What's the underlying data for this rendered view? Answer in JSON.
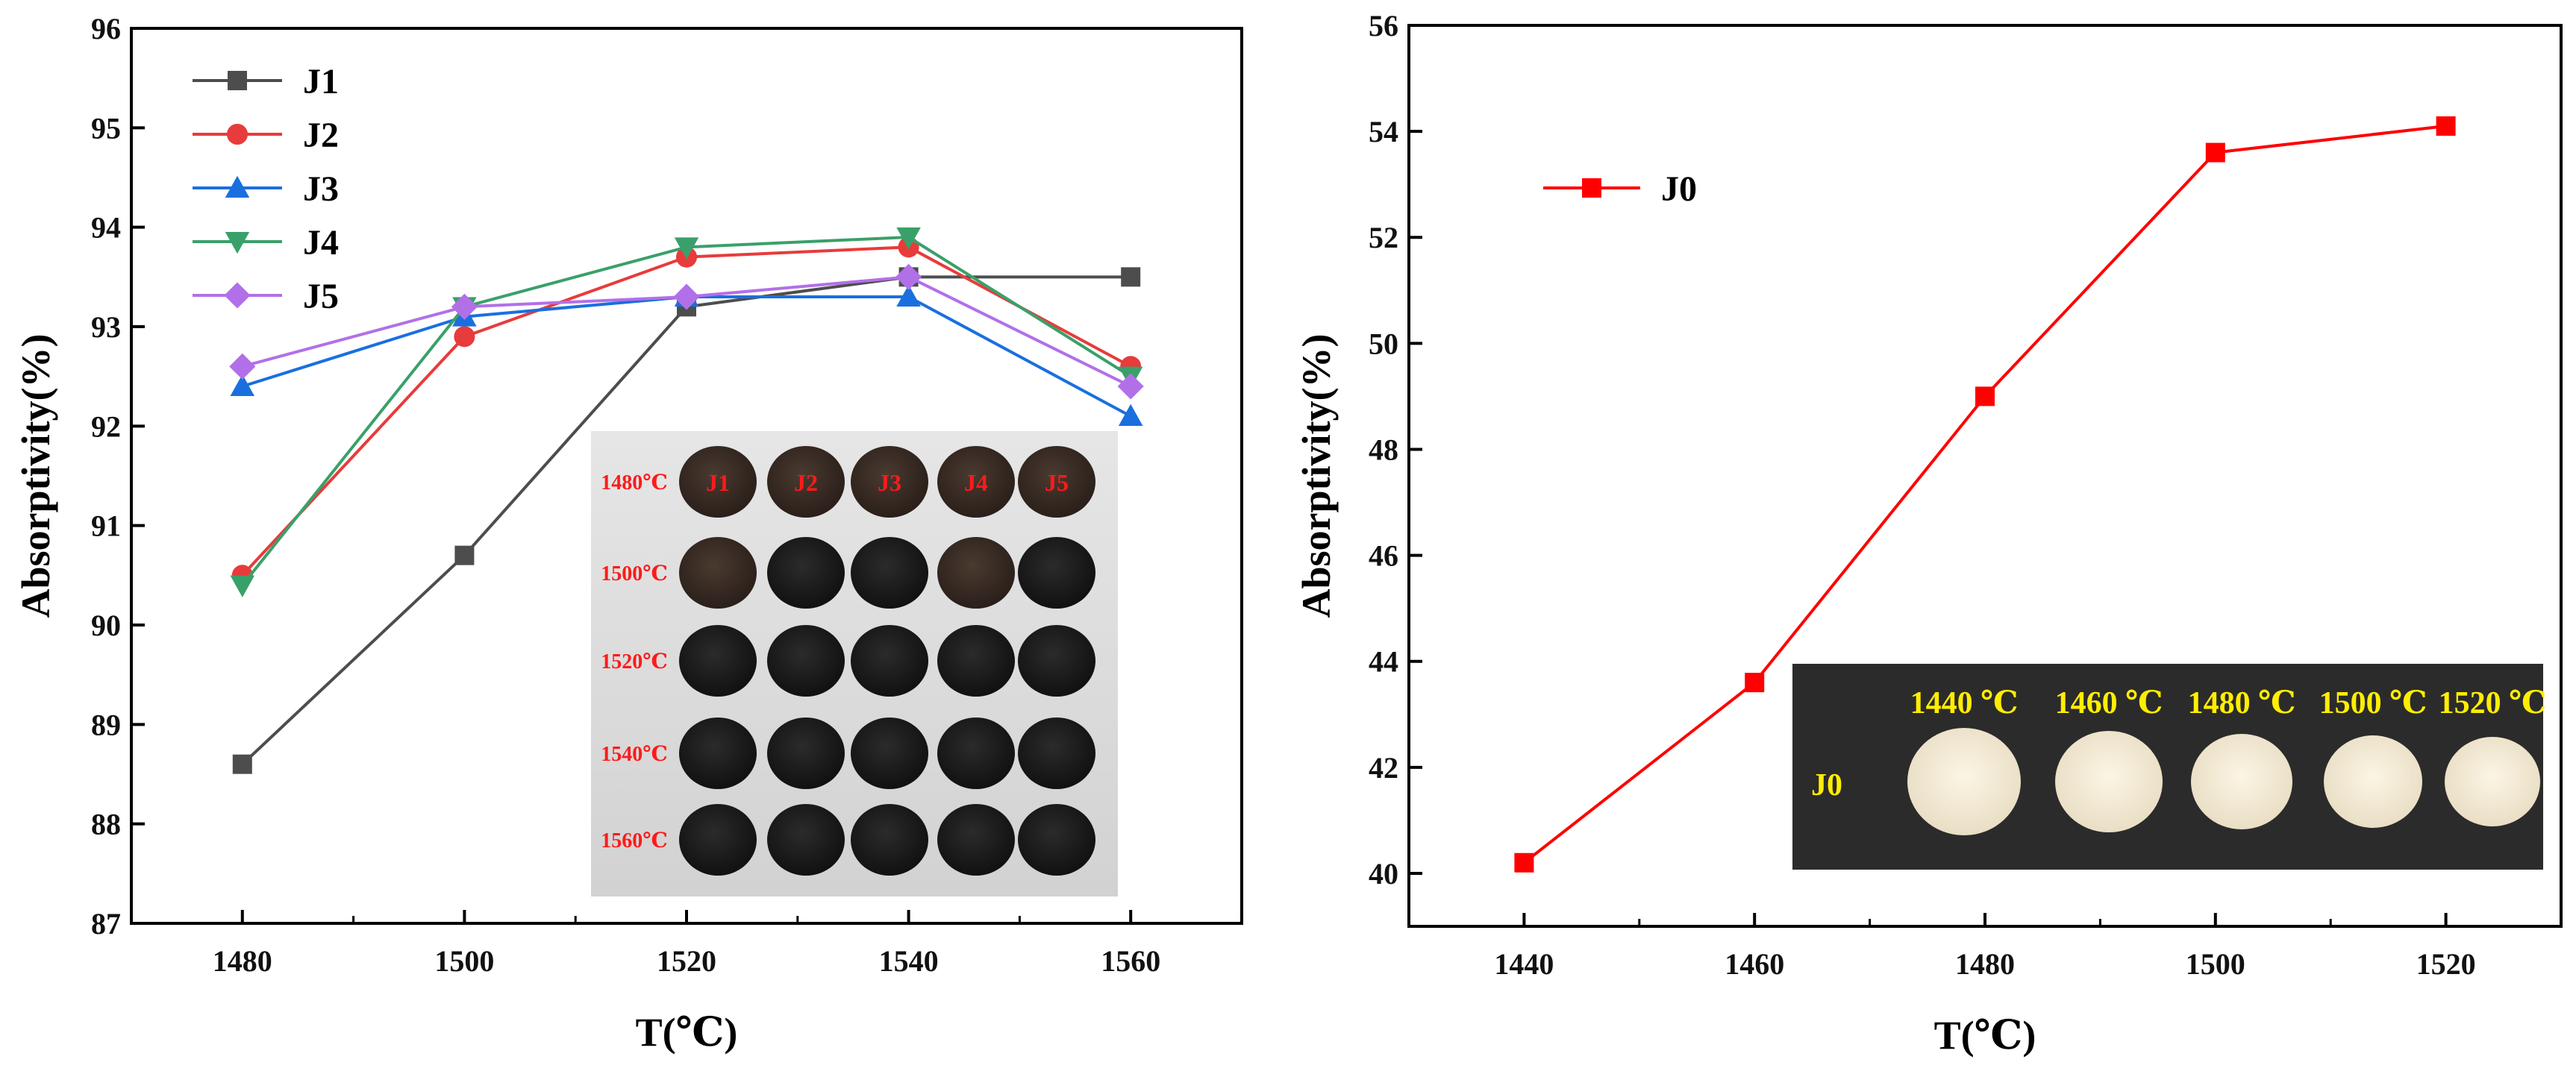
{
  "colors": {
    "J1": "#4d4d4d",
    "J2": "#e83b3b",
    "J3": "#1a6fdf",
    "J4": "#3aa06a",
    "J5": "#b270e8",
    "J0": "#ff0000"
  },
  "chart_data": [
    {
      "type": "line",
      "xlabel": "T(℃)",
      "ylabel": "Absorptivity(%)",
      "xlim": [
        1470,
        1570
      ],
      "ylim": [
        87,
        96
      ],
      "x": [
        1480,
        1500,
        1520,
        1540,
        1560
      ],
      "x_ticks": [
        "1480",
        "1500",
        "1520",
        "1540",
        "1560"
      ],
      "y_ticks": [
        "87",
        "88",
        "89",
        "90",
        "91",
        "92",
        "93",
        "94",
        "95",
        "96"
      ],
      "legend_position": "top-left",
      "series": [
        {
          "name": "J1",
          "marker": "square",
          "values": [
            88.6,
            90.7,
            93.2,
            93.5,
            93.5
          ]
        },
        {
          "name": "J2",
          "marker": "circle",
          "values": [
            90.5,
            92.9,
            93.7,
            93.8,
            92.6
          ]
        },
        {
          "name": "J3",
          "marker": "triangle-up",
          "values": [
            92.4,
            93.1,
            93.3,
            93.3,
            92.1
          ]
        },
        {
          "name": "J4",
          "marker": "triangle-down",
          "values": [
            90.4,
            93.2,
            93.8,
            93.9,
            92.5
          ]
        },
        {
          "name": "J5",
          "marker": "diamond",
          "values": [
            92.6,
            93.2,
            93.3,
            93.5,
            92.4
          ]
        }
      ],
      "inset_photo": {
        "row_labels": [
          "1480℃",
          "1500℃",
          "1520℃",
          "1540℃",
          "1560℃"
        ],
        "column_labels": [
          "J1",
          "J2",
          "J3",
          "J4",
          "J5"
        ]
      }
    },
    {
      "type": "line",
      "xlabel": "T(℃)",
      "ylabel": "Absorptivity(%)",
      "xlim": [
        1430,
        1530
      ],
      "ylim": [
        39,
        56
      ],
      "x": [
        1440,
        1460,
        1480,
        1500,
        1520
      ],
      "x_ticks": [
        "1440",
        "1460",
        "1480",
        "1500",
        "1520"
      ],
      "y_ticks": [
        "40",
        "42",
        "44",
        "46",
        "48",
        "50",
        "52",
        "54",
        "56"
      ],
      "legend_position": "top-left",
      "series": [
        {
          "name": "J0",
          "marker": "square",
          "values": [
            40.2,
            43.6,
            49.0,
            53.6,
            54.1
          ]
        }
      ],
      "inset_photo": {
        "row_label": "J0",
        "column_labels": [
          "1440 ℃",
          "1460 ℃",
          "1480 ℃",
          "1500 ℃",
          "1520 ℃"
        ]
      }
    }
  ]
}
